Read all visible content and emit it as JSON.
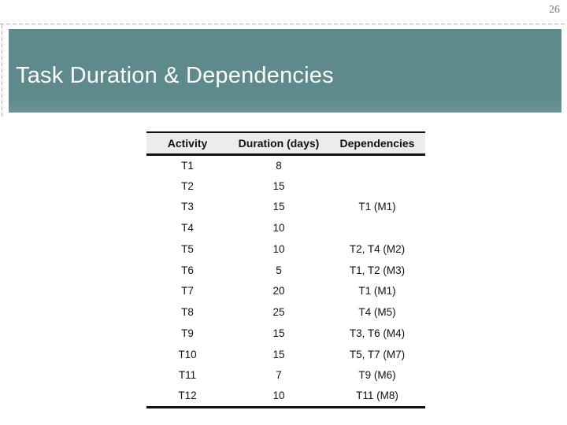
{
  "page": {
    "number": "26"
  },
  "header": {
    "title": "Task Duration & Dependencies",
    "bar_color": "#5e8a8b",
    "text_color": "#ffffff"
  },
  "decor": {
    "dash_color": "#aab3b3"
  },
  "table": {
    "header_bg": "#ececec",
    "border_color": "#111111",
    "columns": [
      "Activity",
      "Duration (days)",
      "Dependencies"
    ],
    "rows": [
      {
        "activity": "T1",
        "duration": "8",
        "dependencies": ""
      },
      {
        "activity": "T2",
        "duration": "15",
        "dependencies": ""
      },
      {
        "activity": "T3",
        "duration": "15",
        "dependencies": "T1 (M1)"
      },
      {
        "activity": "T4",
        "duration": "10",
        "dependencies": ""
      },
      {
        "activity": "T5",
        "duration": "10",
        "dependencies": "T2, T4 (M2)"
      },
      {
        "activity": "T6",
        "duration": "5",
        "dependencies": "T1, T2 (M3)"
      },
      {
        "activity": "T7",
        "duration": "20",
        "dependencies": "T1 (M1)"
      },
      {
        "activity": "T8",
        "duration": "25",
        "dependencies": "T4 (M5)"
      },
      {
        "activity": "T9",
        "duration": "15",
        "dependencies": "T3, T6 (M4)"
      },
      {
        "activity": "T10",
        "duration": "15",
        "dependencies": "T5, T7 (M7)"
      },
      {
        "activity": "T11",
        "duration": "7",
        "dependencies": "T9 (M6)"
      },
      {
        "activity": "T12",
        "duration": "10",
        "dependencies": "T11 (M8)"
      }
    ]
  }
}
